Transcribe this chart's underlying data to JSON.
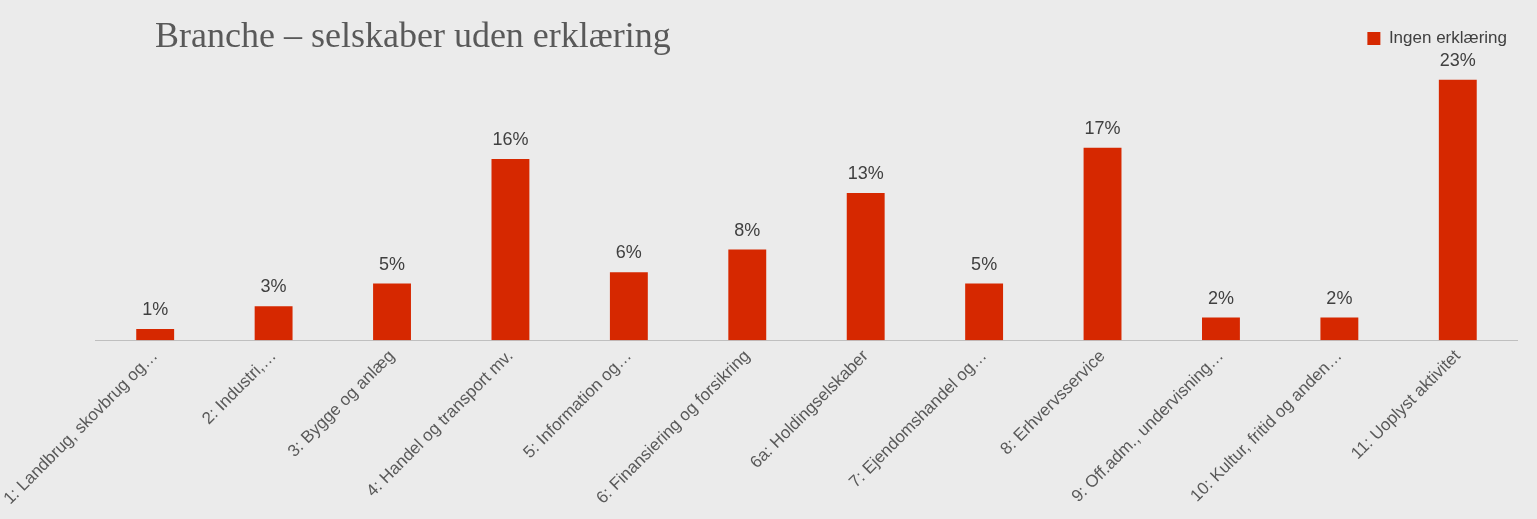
{
  "chart_data": {
    "type": "bar",
    "title": "Branche – selskaber uden erklæring",
    "categories": [
      "1: Landbrug, skovbrug og…",
      "2: Industri,…",
      "3: Bygge og anlæg",
      "4: Handel og transport mv.",
      "5: Information og…",
      "6: Finansiering og forsikring",
      "6a: Holdingselskaber",
      "7: Ejendomshandel og…",
      "8: Erhvervsservice",
      "9: Off.adm., undervisning…",
      "10: Kultur, fritid og anden…",
      "11: Uoplyst aktivitet"
    ],
    "series": [
      {
        "name": "Ingen erklæring",
        "color": "#d62800",
        "values": [
          1,
          3,
          5,
          16,
          6,
          8,
          13,
          5,
          17,
          2,
          2,
          23
        ],
        "value_labels": [
          "1%",
          "3%",
          "5%",
          "16%",
          "6%",
          "8%",
          "13%",
          "5%",
          "17%",
          "2%",
          "2%",
          "23%"
        ]
      }
    ],
    "legend": "top right",
    "grid": false
  }
}
